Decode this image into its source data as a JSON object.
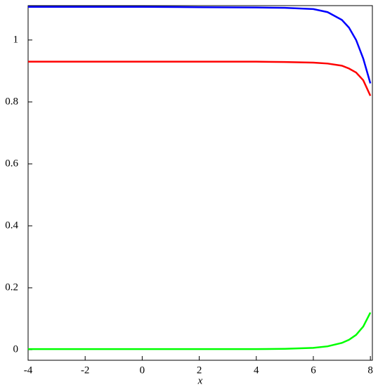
{
  "chart_data": {
    "type": "line",
    "x_label": "x",
    "x": [
      -4,
      -2,
      0,
      2,
      4,
      5,
      6,
      6.5,
      7,
      7.25,
      7.5,
      7.75,
      8
    ],
    "series": [
      {
        "color": "#0000ff",
        "values": [
          1.107,
          1.107,
          1.107,
          1.106,
          1.105,
          1.104,
          1.1,
          1.09,
          1.065,
          1.04,
          1.0,
          0.94,
          0.86
        ]
      },
      {
        "color": "#ff0000",
        "values": [
          0.93,
          0.93,
          0.93,
          0.93,
          0.93,
          0.929,
          0.927,
          0.924,
          0.917,
          0.908,
          0.895,
          0.87,
          0.82
        ]
      },
      {
        "color": "#00ff00",
        "values": [
          0.002,
          0.002,
          0.002,
          0.002,
          0.002,
          0.003,
          0.006,
          0.011,
          0.022,
          0.032,
          0.048,
          0.075,
          0.12
        ]
      }
    ],
    "xlim": [
      -4,
      8.07
    ],
    "ylim": [
      -0.034,
      1.111
    ],
    "xticks": [
      -4,
      -2,
      0,
      2,
      4,
      6,
      8
    ],
    "yticks": [
      0,
      0.2,
      0.4,
      0.6,
      0.8,
      1
    ]
  }
}
